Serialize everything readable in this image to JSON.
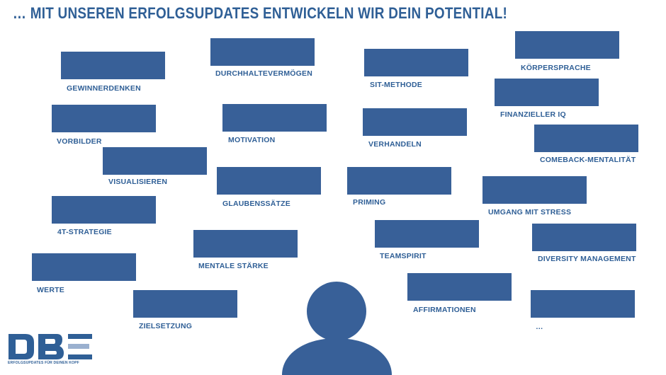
{
  "headline": "… MIT UNSEREN ERFOLGSUPDATES ENTWICKELN WIR DEIN POTENTIAL!",
  "colors": {
    "tile": "#386098",
    "text": "#2f5f96",
    "logo_light": "#9ab0cf"
  },
  "topics": [
    {
      "label": "GEWINNERDENKEN"
    },
    {
      "label": "DURCHHALTEVERMÖGEN"
    },
    {
      "label": "SIT-METHODE"
    },
    {
      "label": "KÖRPERSPRACHE"
    },
    {
      "label": "FINANZIELLER IQ"
    },
    {
      "label": "VORBILDER"
    },
    {
      "label": "MOTIVATION"
    },
    {
      "label": "VERHANDELN"
    },
    {
      "label": "COMEBACK-MENTALITÄT"
    },
    {
      "label": "VISUALISIEREN"
    },
    {
      "label": "GLAUBENSSÄTZE"
    },
    {
      "label": "PRIMING"
    },
    {
      "label": "UMGANG MIT STRESS"
    },
    {
      "label": "4T-STRATEGIE"
    },
    {
      "label": "MENTALE STÄRKE"
    },
    {
      "label": "TEAMSPIRIT"
    },
    {
      "label": "DIVERSITY MANAGEMENT"
    },
    {
      "label": "WERTE"
    },
    {
      "label": "ZIELSETZUNG"
    },
    {
      "label": "AFFIRMATIONEN"
    },
    {
      "label": "…"
    }
  ],
  "icon": "person-silhouette-icon",
  "logo": {
    "text": "DBE",
    "tagline": "ERFOLGSUPDATES FÜR DEINEN KOPF"
  }
}
